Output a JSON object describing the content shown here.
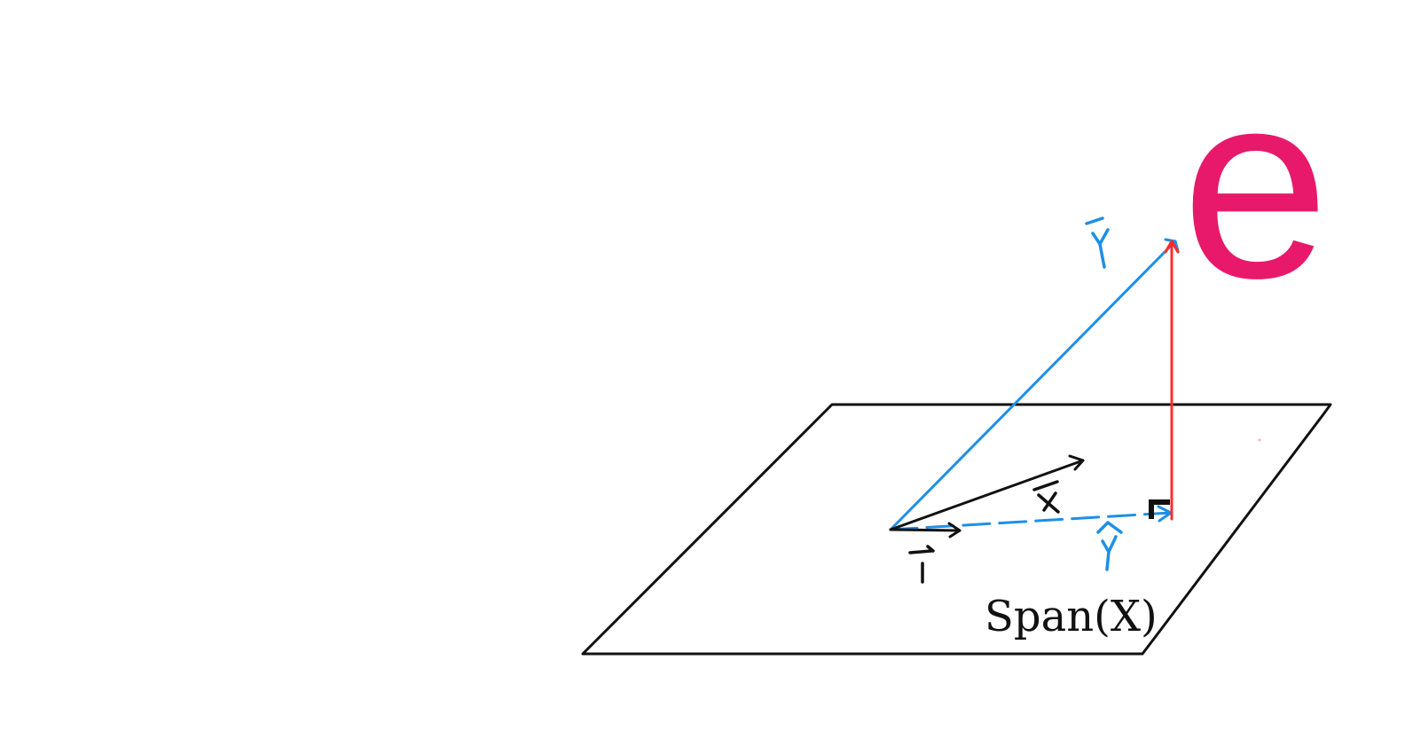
{
  "labels": {
    "residual": "e",
    "plane": "Span(X)"
  },
  "colors": {
    "y_vector": "#1e8fe6",
    "residual": "#ff2b2b",
    "residual_label": "#e8196a",
    "x_vectors": "#111111",
    "plane": "#111111"
  }
}
